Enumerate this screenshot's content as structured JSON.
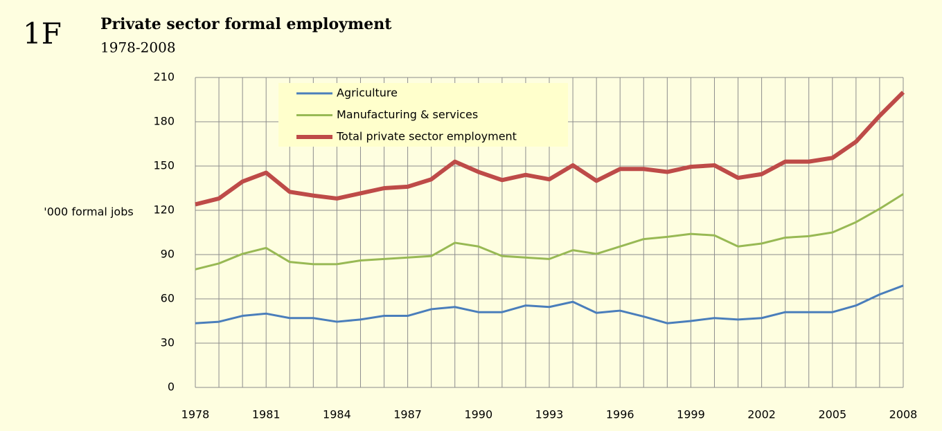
{
  "chart_data": {
    "type": "line",
    "label": "1F",
    "title": "Private sector formal employment",
    "subtitle": "1978-2008",
    "y_label": "'000 formal jobs",
    "x": [
      1978,
      1979,
      1980,
      1981,
      1982,
      1983,
      1984,
      1985,
      1986,
      1987,
      1988,
      1989,
      1990,
      1991,
      1992,
      1993,
      1994,
      1995,
      1996,
      1997,
      1998,
      1999,
      2000,
      2001,
      2002,
      2003,
      2004,
      2005,
      2006,
      2007,
      2008
    ],
    "xlim": [
      1978,
      2008
    ],
    "xticks": [
      1978,
      1981,
      1984,
      1987,
      1990,
      1993,
      1996,
      1999,
      2002,
      2005,
      2008
    ],
    "ylim": [
      0,
      210
    ],
    "yticks": [
      0,
      30,
      60,
      90,
      120,
      150,
      180,
      210
    ],
    "grid": true,
    "legend": "top-left",
    "series": [
      {
        "name": "Agriculture",
        "color": "#4a7ebb",
        "values": [
          43.5,
          44.5,
          48.5,
          50,
          47,
          47,
          44.5,
          46,
          48.5,
          48.5,
          53,
          54.5,
          51,
          51,
          55.5,
          54.5,
          58,
          50.5,
          52,
          48,
          43.5,
          45,
          47,
          46,
          47,
          51,
          51,
          51,
          55.5,
          63,
          69
        ]
      },
      {
        "name": "Manufacturing & services",
        "color": "#98b954",
        "values": [
          80,
          84,
          90.5,
          94.5,
          85,
          83.5,
          83.5,
          86,
          87,
          88,
          89,
          98,
          95.5,
          89,
          88,
          87,
          93,
          90.5,
          95.5,
          100.5,
          102,
          104,
          103,
          95.5,
          97.5,
          101.5,
          102.5,
          105,
          112,
          121,
          131
        ]
      },
      {
        "name": "Total private sector employment",
        "color": "#be4b48",
        "values": [
          124,
          128,
          139.5,
          145.5,
          132.5,
          130,
          128,
          131.5,
          135,
          136,
          141,
          153,
          146,
          140.5,
          144,
          141,
          150.5,
          140,
          148,
          148,
          146,
          149.5,
          150.5,
          142,
          144.5,
          153,
          153,
          155.5,
          166.5,
          184,
          200
        ]
      }
    ]
  }
}
